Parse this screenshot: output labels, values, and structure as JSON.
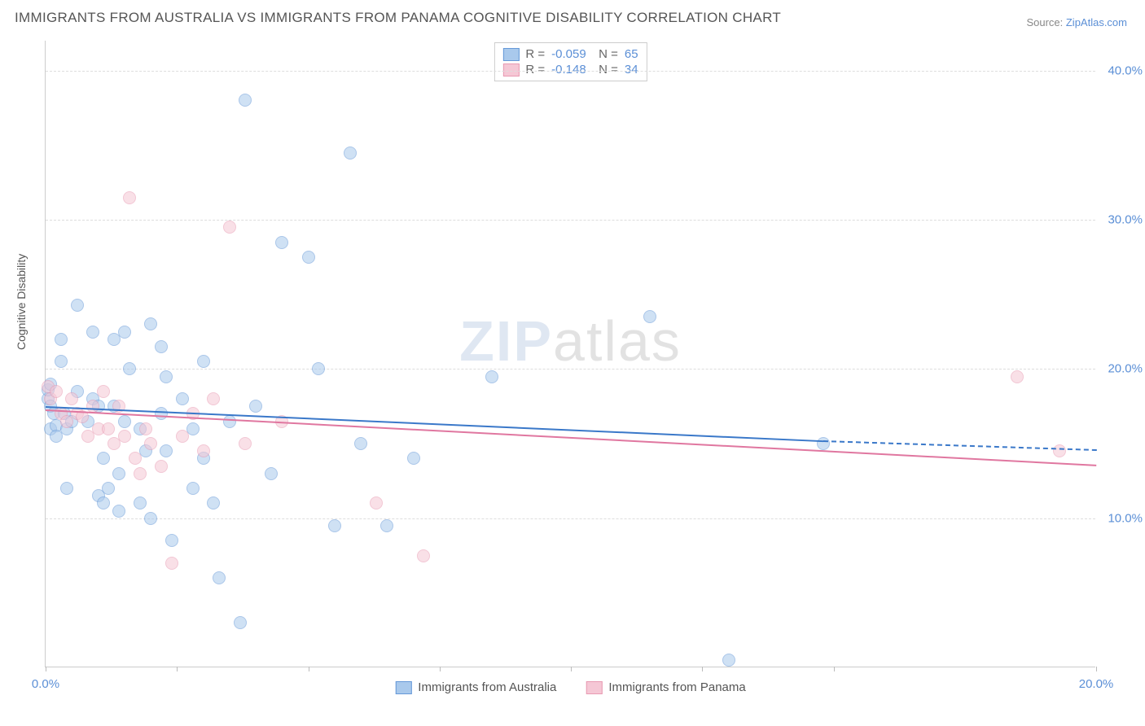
{
  "title": "IMMIGRANTS FROM AUSTRALIA VS IMMIGRANTS FROM PANAMA COGNITIVE DISABILITY CORRELATION CHART",
  "source_prefix": "Source: ",
  "source_link": "ZipAtlas.com",
  "ylabel": "Cognitive Disability",
  "watermark_bold": "ZIP",
  "watermark_light": "atlas",
  "chart": {
    "type": "scatter",
    "xlim": [
      0,
      20
    ],
    "ylim": [
      0,
      42
    ],
    "xticks": [
      0,
      2.5,
      5,
      7.5,
      10,
      12.5,
      15,
      20
    ],
    "xticks_labeled": [
      0,
      20
    ],
    "yticks": [
      10,
      20,
      30,
      40
    ],
    "background_color": "#ffffff",
    "grid_color": "#dddddd",
    "axis_color": "#cccccc",
    "tick_label_color": "#5b8fd6",
    "marker_radius": 8,
    "marker_opacity": 0.55,
    "line_width": 2,
    "series": [
      {
        "name": "Immigrants from Australia",
        "color_fill": "#a9c9ec",
        "color_stroke": "#6699d8",
        "line_color": "#3a78c9",
        "r": "-0.059",
        "n": "65",
        "trend": {
          "x1": 0,
          "y1": 17.5,
          "x2": 14.8,
          "y2": 15.2,
          "extend_to": 20,
          "extend_y": 14.6
        },
        "points": [
          [
            0.05,
            18.0
          ],
          [
            0.05,
            18.6
          ],
          [
            0.1,
            19.0
          ],
          [
            0.1,
            17.5
          ],
          [
            0.1,
            16.0
          ],
          [
            0.15,
            17.0
          ],
          [
            0.2,
            16.2
          ],
          [
            0.2,
            15.5
          ],
          [
            0.3,
            22.0
          ],
          [
            0.3,
            20.5
          ],
          [
            0.35,
            17.0
          ],
          [
            0.4,
            16.0
          ],
          [
            0.4,
            12.0
          ],
          [
            0.5,
            16.5
          ],
          [
            0.6,
            24.3
          ],
          [
            0.6,
            18.5
          ],
          [
            0.8,
            16.5
          ],
          [
            0.9,
            22.5
          ],
          [
            0.9,
            18.0
          ],
          [
            1.0,
            11.5
          ],
          [
            1.0,
            17.5
          ],
          [
            1.1,
            14.0
          ],
          [
            1.1,
            11.0
          ],
          [
            1.2,
            12.0
          ],
          [
            1.3,
            22.0
          ],
          [
            1.3,
            17.5
          ],
          [
            1.4,
            13.0
          ],
          [
            1.4,
            10.5
          ],
          [
            1.5,
            22.5
          ],
          [
            1.5,
            16.5
          ],
          [
            1.6,
            20.0
          ],
          [
            1.8,
            11.0
          ],
          [
            1.8,
            16.0
          ],
          [
            1.9,
            14.5
          ],
          [
            2.0,
            23.0
          ],
          [
            2.0,
            10.0
          ],
          [
            2.2,
            21.5
          ],
          [
            2.2,
            17.0
          ],
          [
            2.3,
            19.5
          ],
          [
            2.3,
            14.5
          ],
          [
            2.4,
            8.5
          ],
          [
            2.6,
            18.0
          ],
          [
            2.8,
            16.0
          ],
          [
            2.8,
            12.0
          ],
          [
            3.0,
            20.5
          ],
          [
            3.0,
            14.0
          ],
          [
            3.2,
            11.0
          ],
          [
            3.3,
            6.0
          ],
          [
            3.5,
            16.5
          ],
          [
            3.7,
            3.0
          ],
          [
            3.8,
            38.0
          ],
          [
            4.0,
            17.5
          ],
          [
            4.3,
            13.0
          ],
          [
            4.5,
            28.5
          ],
          [
            5.0,
            27.5
          ],
          [
            5.2,
            20.0
          ],
          [
            5.5,
            9.5
          ],
          [
            5.8,
            34.5
          ],
          [
            6.0,
            15.0
          ],
          [
            6.5,
            9.5
          ],
          [
            7.0,
            14.0
          ],
          [
            8.5,
            19.5
          ],
          [
            11.5,
            23.5
          ],
          [
            13.0,
            0.5
          ],
          [
            14.8,
            15.0
          ]
        ]
      },
      {
        "name": "Immigrants from Panama",
        "color_fill": "#f5c7d5",
        "color_stroke": "#e89ab2",
        "line_color": "#e077a0",
        "r": "-0.148",
        "n": "34",
        "trend": {
          "x1": 0,
          "y1": 17.3,
          "x2": 20,
          "y2": 13.6
        },
        "points": [
          [
            0.05,
            18.8
          ],
          [
            0.1,
            18.0
          ],
          [
            0.2,
            18.5
          ],
          [
            0.3,
            17.0
          ],
          [
            0.4,
            16.5
          ],
          [
            0.5,
            18.0
          ],
          [
            0.6,
            17.0
          ],
          [
            0.7,
            16.8
          ],
          [
            0.8,
            15.5
          ],
          [
            0.9,
            17.5
          ],
          [
            1.0,
            16.0
          ],
          [
            1.1,
            18.5
          ],
          [
            1.2,
            16.0
          ],
          [
            1.3,
            15.0
          ],
          [
            1.4,
            17.5
          ],
          [
            1.5,
            15.5
          ],
          [
            1.6,
            31.5
          ],
          [
            1.7,
            14.0
          ],
          [
            1.8,
            13.0
          ],
          [
            1.9,
            16.0
          ],
          [
            2.0,
            15.0
          ],
          [
            2.2,
            13.5
          ],
          [
            2.4,
            7.0
          ],
          [
            2.6,
            15.5
          ],
          [
            2.8,
            17.0
          ],
          [
            3.0,
            14.5
          ],
          [
            3.2,
            18.0
          ],
          [
            3.5,
            29.5
          ],
          [
            3.8,
            15.0
          ],
          [
            4.5,
            16.5
          ],
          [
            6.3,
            11.0
          ],
          [
            7.2,
            7.5
          ],
          [
            18.5,
            19.5
          ],
          [
            19.3,
            14.5
          ]
        ]
      }
    ]
  },
  "legend_top": {
    "r_label": "R =",
    "n_label": "N ="
  }
}
